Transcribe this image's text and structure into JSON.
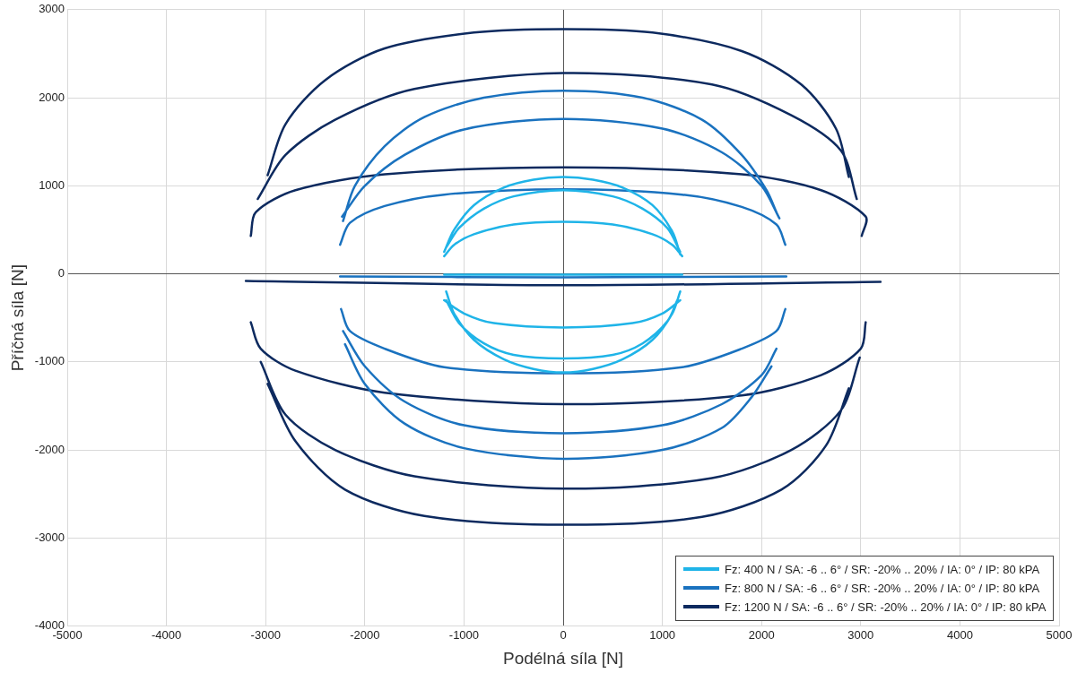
{
  "chart_data": {
    "type": "line",
    "xlabel": "Podélná síla [N]",
    "ylabel": "Příčná síla [N]",
    "xlim": [
      -5000,
      5000
    ],
    "ylim": [
      -4000,
      3000
    ],
    "xticks": [
      -5000,
      -4000,
      -3000,
      -2000,
      -1000,
      0,
      1000,
      2000,
      3000,
      4000,
      5000
    ],
    "yticks": [
      -4000,
      -3000,
      -2000,
      -1000,
      0,
      1000,
      2000,
      3000
    ],
    "grid": true,
    "legend": "bottom right",
    "marker": "none",
    "line_style": "solid",
    "series": [
      {
        "name": "Fz: 400 N / SA: -6 .. 6° / SR: -20% .. 20% / IA: 0° / IP: 80 kPA",
        "color": "#1fb4e8",
        "x": [
          -1200,
          -1100,
          -900,
          -600,
          -300,
          0,
          300,
          600,
          900,
          1100,
          1180,
          null,
          -1180,
          -1050,
          -800,
          -500,
          0,
          500,
          800,
          1050,
          1180,
          null,
          -1200,
          -1100,
          -900,
          -500,
          0,
          500,
          900,
          1100,
          1200,
          null,
          -1180,
          -1100,
          -900,
          -600,
          -300,
          0,
          300,
          600,
          900,
          1100,
          1180,
          null,
          -1180,
          -1050,
          -800,
          -500,
          0,
          500,
          800,
          1050,
          1150,
          null,
          -1200,
          -1000,
          -700,
          0,
          700,
          1000,
          1180,
          null,
          -1200,
          1200
        ],
        "values": [
          250,
          500,
          780,
          980,
          1070,
          1100,
          1070,
          980,
          780,
          480,
          220,
          null,
          300,
          520,
          740,
          880,
          950,
          880,
          740,
          520,
          250,
          null,
          200,
          330,
          450,
          560,
          590,
          560,
          450,
          330,
          200,
          null,
          -200,
          -450,
          -750,
          -970,
          -1080,
          -1120,
          -1080,
          -970,
          -750,
          -450,
          -200,
          null,
          -300,
          -560,
          -790,
          -920,
          -960,
          -920,
          -790,
          -540,
          -300,
          null,
          -300,
          -450,
          -560,
          -610,
          -560,
          -450,
          -300,
          null,
          -10,
          -10
        ]
      },
      {
        "name": "Fz: 800 N / SA: -6 .. 6° / SR: -20% .. 20% / IA: 0° / IP: 80 kPA",
        "color": "#1a72bf",
        "x": [
          -2220,
          -2100,
          -1800,
          -1400,
          -800,
          0,
          800,
          1400,
          1800,
          2050,
          2150,
          null,
          -2230,
          -2000,
          -1600,
          -1000,
          0,
          1000,
          1600,
          2000,
          2180,
          null,
          -2250,
          -2150,
          -1800,
          -1200,
          0,
          1200,
          1800,
          2150,
          2240,
          null,
          -2240,
          -2150,
          -1800,
          -1200,
          0,
          1200,
          1800,
          2150,
          2240,
          null,
          -2220,
          -2000,
          -1600,
          -1000,
          0,
          1000,
          1600,
          2000,
          2150,
          null,
          -2200,
          -2000,
          -1600,
          -1000,
          0,
          1000,
          1600,
          1900,
          2100,
          null,
          -2250,
          0,
          2250
        ],
        "values": [
          600,
          1000,
          1450,
          1780,
          2000,
          2080,
          2000,
          1750,
          1350,
          950,
          700,
          null,
          650,
          1000,
          1350,
          1640,
          1760,
          1650,
          1380,
          1000,
          630,
          null,
          330,
          580,
          770,
          900,
          960,
          900,
          760,
          560,
          330,
          null,
          -400,
          -650,
          -850,
          -1060,
          -1130,
          -1060,
          -850,
          -650,
          -400,
          null,
          -650,
          -1050,
          -1450,
          -1720,
          -1810,
          -1720,
          -1480,
          -1150,
          -850,
          null,
          -800,
          -1250,
          -1700,
          -1980,
          -2100,
          -2000,
          -1750,
          -1400,
          -1050,
          null,
          -30,
          -40,
          -30
        ]
      },
      {
        "name": "Fz: 1200 N / SA: -6 .. 6° / SR: -20% .. 20% / IA: 0° / IP: 80 kPA",
        "color": "#0d2a5f",
        "x": [
          -2980,
          -2800,
          -2400,
          -1800,
          -900,
          0,
          900,
          1800,
          2400,
          2750,
          2880,
          null,
          -3080,
          -2800,
          -2300,
          -1500,
          0,
          1500,
          2300,
          2800,
          2960,
          null,
          -3150,
          -3100,
          -2700,
          -1800,
          0,
          1800,
          2600,
          3050,
          3010,
          null,
          -3150,
          -3050,
          -2700,
          -1800,
          0,
          1800,
          2600,
          3000,
          3050,
          null,
          -3050,
          -2800,
          -2300,
          -1500,
          0,
          1500,
          2300,
          2800,
          2990,
          null,
          -2980,
          -2700,
          -2200,
          -1400,
          0,
          1400,
          2200,
          2650,
          2880,
          null,
          -3200,
          0,
          3200
        ],
        "values": [
          1120,
          1700,
          2200,
          2560,
          2740,
          2780,
          2740,
          2530,
          2150,
          1650,
          1100,
          null,
          850,
          1350,
          1750,
          2100,
          2280,
          2150,
          1800,
          1400,
          850,
          null,
          430,
          700,
          950,
          1130,
          1210,
          1130,
          950,
          650,
          430,
          null,
          -550,
          -850,
          -1100,
          -1350,
          -1480,
          -1380,
          -1150,
          -850,
          -550,
          null,
          -1000,
          -1600,
          -2000,
          -2300,
          -2440,
          -2320,
          -2000,
          -1550,
          -950,
          null,
          -1250,
          -1900,
          -2450,
          -2750,
          -2850,
          -2760,
          -2450,
          -1950,
          -1300,
          null,
          -80,
          -130,
          -90
        ]
      }
    ]
  }
}
